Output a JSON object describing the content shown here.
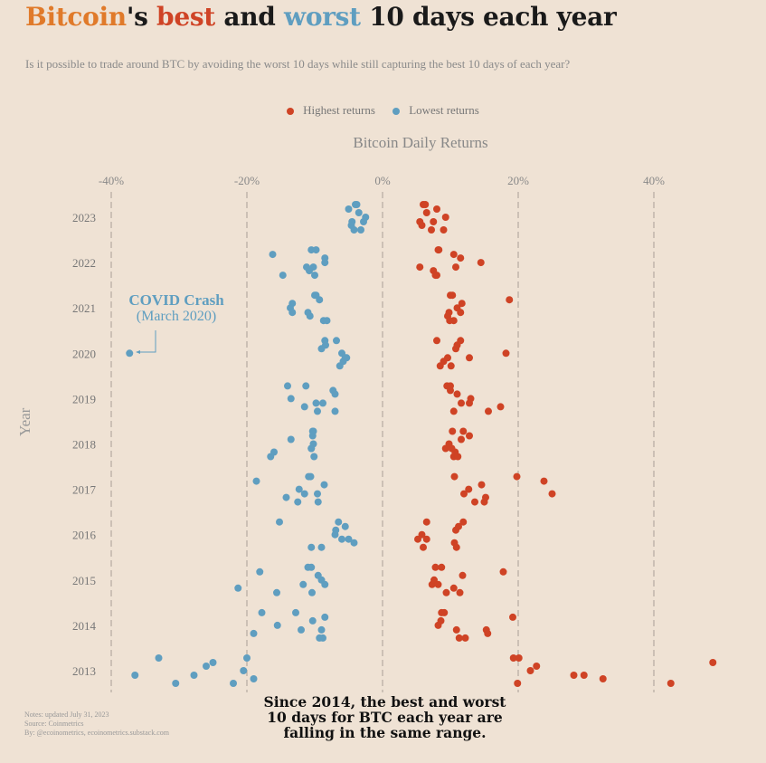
{
  "title": {
    "part1": "Bitcoin",
    "part2": "'s ",
    "part3": "best",
    "part4": " and ",
    "part5": "worst",
    "part6": " 10 days each year"
  },
  "subtitle": "Is it possible to trade around BTC by avoiding the worst 10 days while still capturing the best 10 days of each year?",
  "legend": {
    "high": "Highest returns",
    "low": "Lowest returns"
  },
  "notes": [
    "Notes: updated July 31, 2023",
    "Source: Coinmetrics",
    "By: @ecoinometrics, ecoinometrics.substack.com"
  ],
  "callout": "Since 2014, the best and worst 10 days for BTC each year are falling in the same range.",
  "covid": {
    "line1": "COVID Crash",
    "line2": "(March 2020)"
  },
  "colors": {
    "high": "#cf4325",
    "low": "#5f9ec0",
    "background": "#efe2d4",
    "title_orange": "#e07a2a"
  },
  "chart_data": {
    "type": "scatter",
    "title": "Bitcoin's best and worst 10 days each year",
    "xlabel": "Bitcoin Daily Returns",
    "ylabel": "Year",
    "x_ticks": [
      "-40%",
      "-20%",
      "0%",
      "20%",
      "40%"
    ],
    "x_tick_values": [
      -40,
      -20,
      0,
      20,
      40
    ],
    "xlim": [
      -40,
      40
    ],
    "grid": "vertical dashed",
    "legend_position": "top-center",
    "categories": [
      "2013",
      "2014",
      "2015",
      "2016",
      "2017",
      "2018",
      "2019",
      "2020",
      "2021",
      "2022",
      "2023"
    ],
    "series": [
      {
        "name": "Highest returns",
        "points": {
          "2023": [
            6.0,
            6.5,
            5.5,
            7.2,
            8.0,
            9.3,
            5.8,
            6.3,
            7.5,
            9.0
          ],
          "2022": [
            8.3,
            11.5,
            5.5,
            8.0,
            10.5,
            14.5,
            7.5,
            8.2,
            10.8,
            7.8
          ],
          "2021": [
            10.0,
            11.7,
            9.8,
            10.5,
            18.7,
            11.0,
            9.6,
            10.3,
            11.5,
            9.9
          ],
          "2020": [
            8.0,
            10.8,
            12.8,
            8.5,
            11.0,
            18.2,
            9.0,
            11.5,
            9.6,
            10.1
          ],
          "2019": [
            9.5,
            11.0,
            12.8,
            15.6,
            10.0,
            13.0,
            17.4,
            10.0,
            11.6,
            10.5
          ],
          "2018": [
            10.3,
            11.6,
            9.3,
            10.5,
            12.8,
            9.8,
            10.7,
            11.9,
            10.2,
            11.1
          ],
          "2017": [
            10.6,
            14.6,
            12.0,
            15.0,
            23.8,
            12.7,
            15.2,
            19.8,
            25.0,
            13.6
          ],
          "2016": [
            6.5,
            10.8,
            5.2,
            6.0,
            11.2,
            5.8,
            10.6,
            11.9,
            6.5,
            10.9
          ],
          "2015": [
            8.7,
            11.8,
            7.3,
            9.4,
            17.8,
            7.6,
            10.5,
            7.8,
            8.2,
            11.4
          ],
          "2014": [
            9.1,
            8.6,
            15.3,
            12.2,
            19.2,
            8.2,
            15.5,
            8.7,
            10.9,
            11.3
          ],
          "2013": [
            19.3,
            22.7,
            29.7,
            42.5,
            48.7,
            21.8,
            32.5,
            20.1,
            28.2,
            19.9
          ]
        }
      },
      {
        "name": "Lowest returns",
        "points": {
          "2023": [
            -4.0,
            -3.5,
            -4.5,
            -3.2,
            -5.0,
            -2.5,
            -4.6,
            -3.8,
            -2.8,
            -4.2
          ],
          "2022": [
            -10.5,
            -8.5,
            -10.2,
            -14.7,
            -16.2,
            -8.5,
            -10.8,
            -9.8,
            -11.2,
            -10.0
          ],
          "2021": [
            -10.0,
            -13.3,
            -11.0,
            -8.2,
            -9.3,
            -13.6,
            -10.7,
            -9.8,
            -13.3,
            -8.7
          ],
          "2020": [
            -6.8,
            -9.0,
            -5.3,
            -6.3,
            -8.4,
            -6.0,
            -5.8,
            -8.5,
            -5.5,
            -37.3
          ],
          "2019": [
            -11.3,
            -7.0,
            -8.8,
            -9.6,
            -7.3,
            -13.5,
            -11.5,
            -14.0,
            -9.8,
            -7.0
          ],
          "2018": [
            -10.3,
            -13.5,
            -10.5,
            -16.5,
            -10.3,
            -10.2,
            -16.0,
            -10.2,
            -10.5,
            -10.1
          ],
          "2017": [
            -10.9,
            -8.6,
            -11.5,
            -9.5,
            -18.6,
            -12.3,
            -14.2,
            -10.6,
            -9.6,
            -12.5
          ],
          "2016": [
            -6.5,
            -6.9,
            -5.0,
            -9.0,
            -5.5,
            -7.0,
            -4.2,
            -15.2,
            -6.0,
            -10.5
          ],
          "2015": [
            -10.5,
            -9.5,
            -11.7,
            -15.6,
            -18.1,
            -9.0,
            -21.3,
            -11.0,
            -8.5,
            -10.4
          ],
          "2014": [
            -12.8,
            -10.3,
            -9.0,
            -9.3,
            -8.5,
            -15.5,
            -19.0,
            -17.8,
            -12.0,
            -8.8
          ],
          "2013": [
            -33.0,
            -26.0,
            -36.5,
            -30.5,
            -25.0,
            -20.5,
            -19.0,
            -20.0,
            -27.8,
            -22.0
          ]
        }
      }
    ]
  }
}
